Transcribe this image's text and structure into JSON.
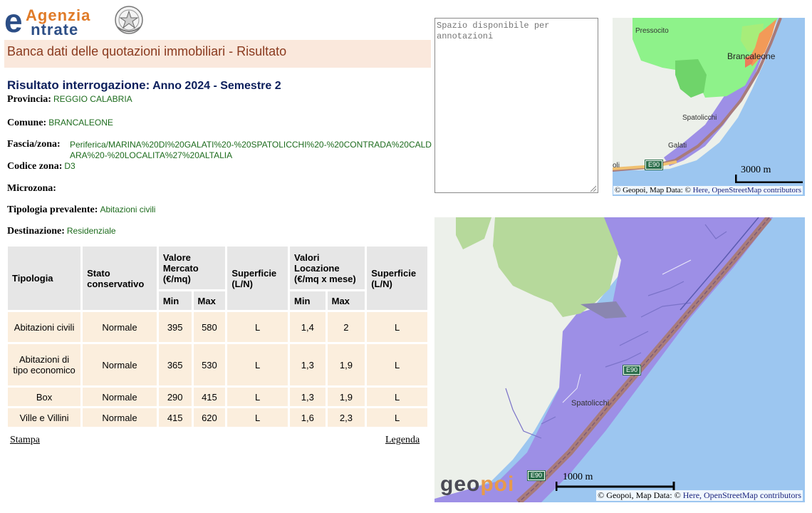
{
  "header": {
    "logo_line1": "genzia",
    "logo_line2": "ntrate",
    "logo_initial": "e",
    "page_title": "Banca dati delle quotazioni immobiliari - Risultato"
  },
  "result": {
    "title_label": "Risultato interrogazione:",
    "title_value": "Anno 2024 - Semestre 2",
    "provincia_label": "Provincia:",
    "provincia_value": "REGGIO CALABRIA",
    "comune_label": "Comune:",
    "comune_value": "BRANCALEONE",
    "fascia_label": "Fascia/zona:",
    "fascia_value": "Periferica/MARINA%20DI%20GALATI%20-%20SPATOLICCHI%20-%20CONTRADA%20CALDARA%20-%20LOCALITA%27%20ALTALIA",
    "codice_label": "Codice zona:",
    "codice_value": "D3",
    "microzona_label": "Microzona:",
    "microzona_value": "",
    "tipologia_label": "Tipologia prevalente:",
    "tipologia_value": "Abitazioni civili",
    "destinazione_label": "Destinazione:",
    "destinazione_value": "Residenziale"
  },
  "table": {
    "headers": {
      "tipologia": "Tipologia",
      "stato": "Stato conservativo",
      "valore": "Valore Mercato (€/mq)",
      "superficie1": "Superficie (L/N)",
      "locazione": "Valori Locazione (€/mq x mese)",
      "superficie2": "Superficie (L/N)",
      "min": "Min",
      "max": "Max"
    },
    "rows": [
      {
        "tipologia": "Abitazioni civili",
        "stato": "Normale",
        "vm_min": "395",
        "vm_max": "580",
        "sup1": "L",
        "vl_min": "1,4",
        "vl_max": "2",
        "sup2": "L"
      },
      {
        "tipologia": "Abitazioni di tipo economico",
        "stato": "Normale",
        "vm_min": "365",
        "vm_max": "530",
        "sup1": "L",
        "vl_min": "1,3",
        "vl_max": "1,9",
        "sup2": "L"
      },
      {
        "tipologia": "Box",
        "stato": "Normale",
        "vm_min": "290",
        "vm_max": "415",
        "sup1": "L",
        "vl_min": "1,3",
        "vl_max": "1,9",
        "sup2": "L"
      },
      {
        "tipologia": "Ville e Villini",
        "stato": "Normale",
        "vm_min": "415",
        "vm_max": "620",
        "sup1": "L",
        "vl_min": "1,6",
        "vl_max": "2,3",
        "sup2": "L"
      }
    ]
  },
  "links": {
    "stampa": "Stampa",
    "legenda": "Legenda"
  },
  "notes": {
    "placeholder": "Spazio disponibile per annotazioni"
  },
  "map_small": {
    "places": {
      "pressocito": "Pressocito",
      "brancaleone": "Brancaleone",
      "spatolicchi": "Spatolicchi",
      "galati": "Galati",
      "oli": "oli"
    },
    "road": "E90",
    "scale": "3000 m",
    "attribution_copy": "© Geopoi, Map Data: ©",
    "attribution_links": "Here, OpenStreetMap contributors"
  },
  "map_large": {
    "places": {
      "spatolicchi": "Spatolicchi"
    },
    "roads": [
      "E90",
      "E90"
    ],
    "scale": "1000 m",
    "logo_part1": "geo",
    "logo_part2": "poi",
    "attribution_copy": "© Geopoi, Map Data: ©",
    "attribution_links": "Here, OpenStreetMap contributors"
  },
  "colors": {
    "sea": "#9cc6f0",
    "zone_purple": "#9d8fe6",
    "green_area": "#8ef28a",
    "coast_road": "#a87b7b",
    "title_band": "#fae8dc",
    "title_text": "#8a3a1e",
    "value_green": "#1c6b1c",
    "cell_bg": "#fbeedd",
    "header_bg": "#e6e6e6"
  }
}
